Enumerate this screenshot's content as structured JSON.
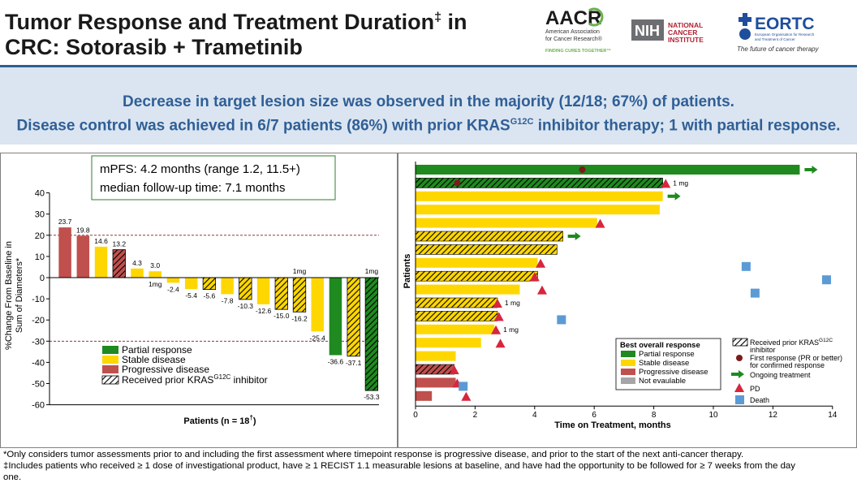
{
  "header": {
    "title_line1": "Tumor Response and Treatment Duration",
    "title_sup": "‡",
    "title_suffix": " in",
    "title_line2": "CRC: Sotorasib + Trametinib"
  },
  "logos": {
    "aacr": {
      "name": "AACR",
      "line1": "American Association",
      "line2": "for Cancer Research®",
      "tagline": "FINDING CURES TOGETHER™"
    },
    "nih": {
      "name": "NIH",
      "line1": "NATIONAL",
      "line2": "CANCER",
      "line3": "INSTITUTE"
    },
    "eortc": {
      "name": "EORTC",
      "sub1": "European Organisation for Research",
      "sub2": "and Treatment of Cancer",
      "tagline": "The future of cancer therapy"
    }
  },
  "banner": {
    "line1": "Decrease in target lesion size was observed in the majority (12/18; 67%) of patients.",
    "line2_prefix": "Disease control was achieved in 6/7 patients (86%) with prior KRAS",
    "line2_sup": "G12C",
    "line2_suffix": " inhibitor therapy; 1 with partial response."
  },
  "colors": {
    "partial": "#1f8a1f",
    "stable": "#ffd700",
    "progressive": "#c0504d",
    "not_evaluable": "#a6a6a6",
    "pd_marker": "#d7263d",
    "first_response": "#7b1b1b",
    "death": "#5b9bd5",
    "ongoing": "#1f8a1f",
    "banner_text": "#2f5f96"
  },
  "chart_data": [
    {
      "type": "bar",
      "title": "",
      "ylabel_line1": "%Change From Baseline in",
      "ylabel_line2": "Sum of Diameters*",
      "xlabel": "Patients (n = 18",
      "xlabel_sup": "†",
      "xlabel_suffix": ")",
      "ylim": [
        -60,
        40
      ],
      "yticks": [
        40,
        30,
        20,
        10,
        0,
        -10,
        -20,
        -30,
        -40,
        -50,
        -60
      ],
      "reference_lines": [
        20,
        -30
      ],
      "stats_box": [
        "mPFS: 4.2 months (range 1.2, 11.5+)",
        "median follow-up time: 7.1 months"
      ],
      "legend": [
        {
          "label": "Partial response",
          "color": "#1f8a1f",
          "hatch": false
        },
        {
          "label": "Stable disease",
          "color": "#ffd700",
          "hatch": false
        },
        {
          "label": "Progressive disease",
          "color": "#c0504d",
          "hatch": false
        },
        {
          "label": "Received prior KRAS",
          "sup": "G12C",
          "suffix": " inhibitor",
          "color": "#ffffff",
          "hatch": true
        }
      ],
      "bars": [
        {
          "value": 23.7,
          "label": "23.7",
          "response": "progressive",
          "prior": false,
          "note": ""
        },
        {
          "value": 19.8,
          "label": "19.8",
          "response": "progressive",
          "prior": false,
          "note": ""
        },
        {
          "value": 14.6,
          "label": "14.6",
          "response": "stable",
          "prior": false,
          "note": ""
        },
        {
          "value": 13.2,
          "label": "13.2",
          "response": "progressive",
          "prior": true,
          "note": ""
        },
        {
          "value": 4.3,
          "label": "4.3",
          "response": "stable",
          "prior": false,
          "note": ""
        },
        {
          "value": 3.0,
          "label": "3.0",
          "response": "stable",
          "prior": false,
          "note": "1mg"
        },
        {
          "value": -2.4,
          "label": "-2.4",
          "response": "stable",
          "prior": false,
          "note": ""
        },
        {
          "value": -5.4,
          "label": "-5.4",
          "response": "stable",
          "prior": false,
          "note": ""
        },
        {
          "value": -5.6,
          "label": "-5.6",
          "response": "stable",
          "prior": true,
          "note": ""
        },
        {
          "value": -7.8,
          "label": "-7.8",
          "response": "stable",
          "prior": false,
          "note": ""
        },
        {
          "value": -10.3,
          "label": "-10.3",
          "response": "stable",
          "prior": true,
          "note": ""
        },
        {
          "value": -12.6,
          "label": "-12.6",
          "response": "stable",
          "prior": false,
          "note": ""
        },
        {
          "value": -15.0,
          "label": "-15.0",
          "response": "stable",
          "prior": true,
          "note": ""
        },
        {
          "value": -16.2,
          "label": "-16.2",
          "response": "stable",
          "prior": true,
          "note": "1mg"
        },
        {
          "value": -25.4,
          "label": "-25.4",
          "response": "stable",
          "prior": false,
          "note": ""
        },
        {
          "value": -36.6,
          "label": "-36.6",
          "response": "partial",
          "prior": false,
          "note": ""
        },
        {
          "value": -37.1,
          "label": "-37.1",
          "response": "stable",
          "prior": true,
          "note": ""
        },
        {
          "value": -53.3,
          "label": "-53.3",
          "response": "partial",
          "prior": true,
          "note": "1mg"
        }
      ]
    },
    {
      "type": "bar",
      "orientation": "horizontal",
      "title": "",
      "xlabel": "Time on Treatment, months",
      "ylabel": "Patients",
      "xlim": [
        0,
        14
      ],
      "xticks": [
        0,
        2,
        4,
        6,
        8,
        10,
        12,
        14
      ],
      "legend_title": "Best overall response",
      "legend": [
        {
          "label": "Partial  response",
          "kind": "bar",
          "color": "#1f8a1f"
        },
        {
          "label": "Stable disease",
          "kind": "bar",
          "color": "#ffd700"
        },
        {
          "label": "Progressive disease",
          "kind": "bar",
          "color": "#c0504d"
        },
        {
          "label": "Not evaulable",
          "kind": "bar",
          "color": "#a6a6a6"
        }
      ],
      "legend_markers": [
        {
          "label": "Received prior KRAS",
          "sup": "G12C",
          "line2": "inhibitor",
          "kind": "hatch"
        },
        {
          "label": "First response (PR or better)",
          "line2": "for confirmed response",
          "kind": "dot"
        },
        {
          "label": "Ongoing treatment",
          "kind": "arrow"
        },
        {
          "label": "PD",
          "kind": "triangle"
        },
        {
          "label": "Death",
          "kind": "square"
        }
      ],
      "patients": [
        {
          "duration": 12.9,
          "response": "partial",
          "prior": false,
          "first_response": 5.6,
          "pd": null,
          "ongoing": true,
          "death": null,
          "note": ""
        },
        {
          "duration": 8.3,
          "response": "partial",
          "prior": true,
          "first_response": 1.4,
          "pd": 8.4,
          "ongoing": false,
          "death": null,
          "note": "1 mg"
        },
        {
          "duration": 8.3,
          "response": "stable",
          "prior": false,
          "first_response": null,
          "pd": null,
          "ongoing": true,
          "death": null,
          "note": ""
        },
        {
          "duration": 8.2,
          "response": "stable",
          "prior": false,
          "first_response": null,
          "pd": null,
          "ongoing": false,
          "death": null,
          "note": ""
        },
        {
          "duration": 6.1,
          "response": "stable",
          "prior": false,
          "first_response": null,
          "pd": 6.2,
          "ongoing": false,
          "death": null,
          "note": ""
        },
        {
          "duration": 4.95,
          "response": "stable",
          "prior": true,
          "first_response": null,
          "pd": null,
          "ongoing": true,
          "death": null,
          "note": ""
        },
        {
          "duration": 4.75,
          "response": "stable",
          "prior": true,
          "first_response": null,
          "pd": null,
          "ongoing": false,
          "death": null,
          "note": ""
        },
        {
          "duration": 4.1,
          "response": "stable",
          "prior": false,
          "first_response": null,
          "pd": 4.2,
          "ongoing": false,
          "death": 11.1,
          "note": ""
        },
        {
          "duration": 4.1,
          "response": "stable",
          "prior": true,
          "first_response": null,
          "pd": 4.0,
          "ongoing": false,
          "death": 13.8,
          "note": ""
        },
        {
          "duration": 3.5,
          "response": "stable",
          "prior": false,
          "first_response": null,
          "pd": 4.25,
          "ongoing": false,
          "death": 11.4,
          "note": ""
        },
        {
          "duration": 2.75,
          "response": "stable",
          "prior": true,
          "first_response": null,
          "pd": 2.75,
          "ongoing": false,
          "death": null,
          "note": "1 mg"
        },
        {
          "duration": 2.75,
          "response": "stable",
          "prior": true,
          "first_response": null,
          "pd": 2.8,
          "ongoing": false,
          "death": 4.9,
          "note": ""
        },
        {
          "duration": 2.65,
          "response": "stable",
          "prior": false,
          "first_response": null,
          "pd": 2.7,
          "ongoing": false,
          "death": null,
          "note": "1 mg"
        },
        {
          "duration": 2.2,
          "response": "stable",
          "prior": false,
          "first_response": null,
          "pd": 2.85,
          "ongoing": false,
          "death": null,
          "note": ""
        },
        {
          "duration": 1.35,
          "response": "stable",
          "prior": false,
          "first_response": null,
          "pd": null,
          "ongoing": false,
          "death": null,
          "note": ""
        },
        {
          "duration": 1.3,
          "response": "progressive",
          "prior": true,
          "first_response": null,
          "pd": 1.3,
          "ongoing": false,
          "death": null,
          "note": ""
        },
        {
          "duration": 1.35,
          "response": "progressive",
          "prior": false,
          "first_response": null,
          "pd": 1.4,
          "ongoing": false,
          "death": 1.6,
          "note": ""
        },
        {
          "duration": 0.55,
          "response": "progressive",
          "prior": false,
          "first_response": null,
          "pd": 1.7,
          "ongoing": false,
          "death": null,
          "note": ""
        }
      ]
    }
  ],
  "footnotes": {
    "line1": "*Only considers tumor assessments prior to and including the first assessment where timepoint response is progressive disease, and prior to the start of the next anti-cancer therapy.",
    "line2": "‡Includes patients who received ≥ 1 dose of investigational product, have ≥ 1 RECIST 1.1 measurable lesions at baseline, and have had the opportunity to be followed for ≥ 7 weeks from the day",
    "line3": "one."
  }
}
